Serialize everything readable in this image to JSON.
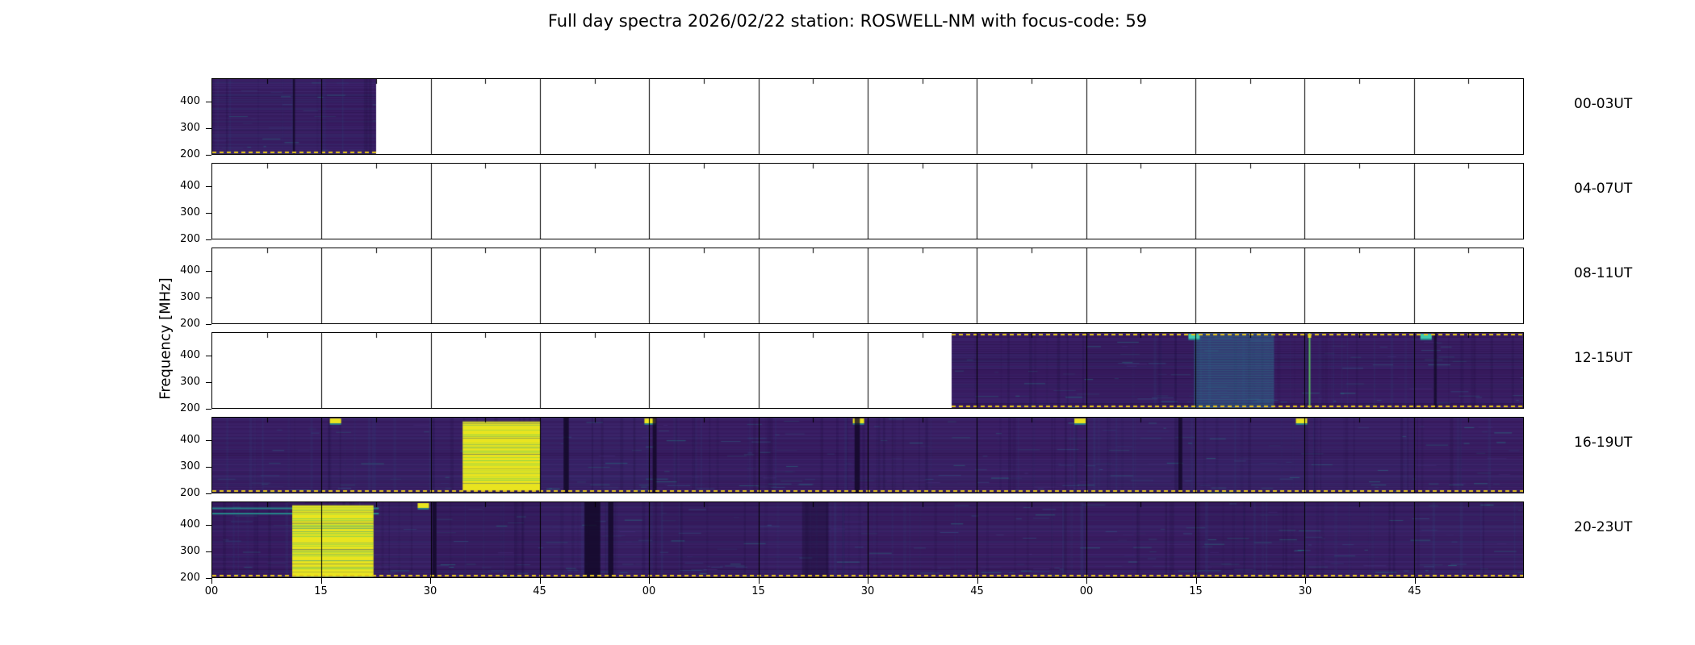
{
  "figure": {
    "title": "Full day spectra 2026/02/22 station: ROSWELL-NM with focus-code: 59",
    "ylabel": "Frequency [MHz]"
  },
  "chart_data": {
    "type": "heatmap",
    "title": "Full day spectra 2026/02/22 station: ROSWELL-NM with focus-code: 59",
    "date": "2026/02/22",
    "station": "ROSWELL-NM",
    "focus_code": "59",
    "ylabel": "Frequency [MHz]",
    "colormap": "viridis",
    "y_ticks": [
      400,
      300,
      200
    ],
    "y_range": [
      200,
      490
    ],
    "x_tick_labels": [
      "00",
      "15",
      "30",
      "45",
      "00",
      "15",
      "30",
      "45",
      "00",
      "15",
      "30",
      "45"
    ],
    "segments_per_row": 12,
    "minutes_per_segment": 15,
    "legend_position": "none",
    "grid": "panel-borders",
    "palette": {
      "background": "#ffffff",
      "frame": "#000000",
      "base": "#371a5e",
      "stripe1": "#4a3584",
      "stripe2": "#2e4b7e",
      "dark": "#160a33",
      "dark2": "#120826",
      "teal": "#24948e",
      "blue": "#31688e",
      "green": "#5ec962",
      "yellow": "#e9e41f",
      "dash": "#e8c81c",
      "mark_teal": "#3ec9ad"
    },
    "rows": [
      {
        "label": "00-03UT",
        "seed": 11,
        "coverage": [
          [
            0.0,
            0.125
          ]
        ],
        "top_dash": false,
        "features": [
          {
            "type": "vline_dark",
            "x": 0.0615,
            "w": 0.0015
          }
        ]
      },
      {
        "label": "04-07UT",
        "seed": 22,
        "coverage": [],
        "top_dash": false,
        "features": []
      },
      {
        "label": "08-11UT",
        "seed": 33,
        "coverage": [],
        "top_dash": false,
        "features": []
      },
      {
        "label": "12-15UT",
        "seed": 44,
        "coverage": [
          [
            0.564,
            1.0
          ]
        ],
        "top_dash": true,
        "features": [
          {
            "type": "panel_teal",
            "x0": 0.749,
            "x1": 0.81
          },
          {
            "type": "vline_bright",
            "x": 0.8365
          },
          {
            "type": "top_mark",
            "x": 0.749,
            "color": "teal"
          },
          {
            "type": "top_mark",
            "x": 0.926,
            "color": "teal"
          },
          {
            "type": "vline_dark",
            "x": 0.932,
            "w": 0.002
          }
        ]
      },
      {
        "label": "16-19UT",
        "seed": 55,
        "coverage": [
          [
            0.0,
            1.0
          ]
        ],
        "top_dash": false,
        "features": [
          {
            "type": "yellow_block",
            "x0": 0.191,
            "x1": 0.25,
            "y0": 0.05,
            "y1": 0.97
          },
          {
            "type": "top_mark",
            "x": 0.094,
            "color": "yellow"
          },
          {
            "type": "top_mark",
            "x": 0.334,
            "color": "yellow"
          },
          {
            "type": "top_mark",
            "x": 0.493,
            "color": "yellow"
          },
          {
            "type": "top_mark",
            "x": 0.662,
            "color": "yellow"
          },
          {
            "type": "top_mark",
            "x": 0.831,
            "color": "yellow"
          },
          {
            "type": "vline_dark",
            "x": 0.268,
            "w": 0.004
          },
          {
            "type": "vline_dark",
            "x": 0.336,
            "w": 0.003
          },
          {
            "type": "vline_dark",
            "x": 0.49,
            "w": 0.004
          },
          {
            "type": "vline_dark",
            "x": 0.737,
            "w": 0.003
          }
        ]
      },
      {
        "label": "20-23UT",
        "seed": 66,
        "coverage": [
          [
            0.0,
            1.0
          ]
        ],
        "top_dash": false,
        "features": [
          {
            "type": "teal_hline",
            "x0": 0.0,
            "x1": 0.127,
            "y": 0.07
          },
          {
            "type": "teal_hline",
            "x0": 0.0,
            "x1": 0.127,
            "y": 0.14
          },
          {
            "type": "yellow_block",
            "x0": 0.061,
            "x1": 0.123,
            "y0": 0.04,
            "y1": 0.99
          },
          {
            "type": "top_mark",
            "x": 0.161,
            "color": "yellow"
          },
          {
            "type": "vline_dark",
            "x": 0.168,
            "w": 0.003
          },
          {
            "type": "vline_dark",
            "x": 0.284,
            "w": 0.012
          },
          {
            "type": "vline_dark",
            "x": 0.302,
            "w": 0.004
          },
          {
            "type": "vline_dark",
            "x": 0.45,
            "w": 0.02,
            "a": 0.3
          }
        ]
      }
    ]
  }
}
